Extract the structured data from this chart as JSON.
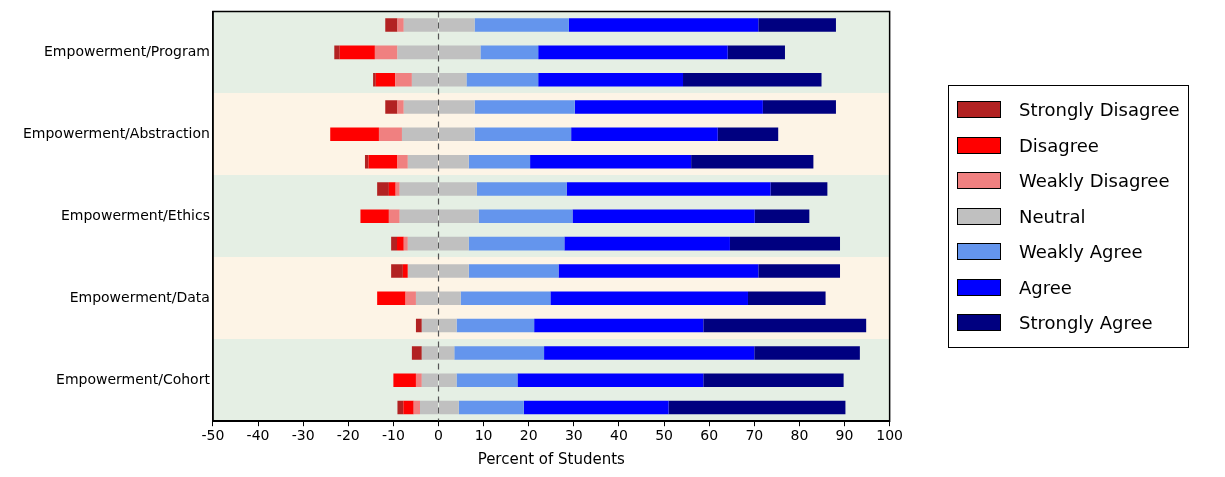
{
  "chart_data": {
    "type": "bar",
    "orientation": "horizontal",
    "stacked": true,
    "xlabel": "Percent of Students",
    "categories": [
      null,
      "Empowerment/Program",
      null,
      null,
      "Empowerment/Abstraction",
      null,
      null,
      "Empowerment/Ethics",
      null,
      null,
      "Empowerment/Data",
      null,
      null,
      "Empowerment/Cohort",
      null
    ],
    "series": [
      {
        "color": "#c0c0c0",
        "values": [
          -7.7,
          -9.1,
          -5.9,
          -7.7,
          -8.1,
          -6.8,
          -8.6,
          -8.6,
          -6.8,
          -6.8,
          -5.0,
          -3.7,
          -3.7,
          -3.7,
          -4.1
        ]
      },
      {
        "name": "Weakly Disagree",
        "color": "#f08080",
        "values": [
          -1.4,
          -5.0,
          -3.7,
          -1.4,
          -5.1,
          -2.3,
          -0.9,
          -2.4,
          -0.9,
          0,
          -2.3,
          0,
          0,
          -1.3,
          -1.4
        ]
      },
      {
        "name": "Disagree",
        "color": "#ff0000",
        "values": [
          0,
          -7.8,
          -4.3,
          0,
          -10.8,
          -6.4,
          -1.5,
          -6.3,
          -1.5,
          -1.1,
          -6.3,
          0,
          0,
          -5.0,
          -2.3
        ]
      },
      {
        "name": "Strongly Disagree",
        "color": "#b22222",
        "values": [
          -2.7,
          -1.2,
          -0.6,
          -2.7,
          0,
          -0.8,
          -2.6,
          0,
          -1.3,
          -2.6,
          0,
          -1.3,
          -2.2,
          0,
          -1.3
        ]
      },
      {
        "name": "Neutral",
        "color": "#c0c0c0",
        "values": [
          8.0,
          9.3,
          6.2,
          8.0,
          8.0,
          6.7,
          8.5,
          8.9,
          6.7,
          6.7,
          4.9,
          4.0,
          3.5,
          4.0,
          4.5
        ]
      },
      {
        "name": "Weakly Agree",
        "color": "#6495ed",
        "values": [
          20.9,
          12.8,
          15.9,
          22.2,
          21.4,
          13.6,
          19.9,
          20.8,
          21.2,
          19.9,
          19.9,
          17.2,
          19.9,
          13.5,
          14.4
        ]
      },
      {
        "name": "Agree",
        "color": "#0000ff",
        "values": [
          42.0,
          42.0,
          32.1,
          41.7,
          32.5,
          35.7,
          45.2,
          40.4,
          36.7,
          44.3,
          43.8,
          37.5,
          46.6,
          41.2,
          32.1
        ]
      },
      {
        "name": "Strongly Agree",
        "color": "#000080",
        "values": [
          17.2,
          12.7,
          30.7,
          16.2,
          13.4,
          27.1,
          12.6,
          12.1,
          24.4,
          18.1,
          17.2,
          36.1,
          23.4,
          31.1,
          39.2
        ]
      }
    ],
    "xlim": [
      -50,
      100
    ],
    "xticks": [
      -50,
      -40,
      -30,
      -20,
      -10,
      0,
      10,
      20,
      30,
      40,
      50,
      60,
      70,
      80,
      90,
      100
    ],
    "grid": false,
    "legend": "right",
    "ref_lines": [
      {
        "axis": "x",
        "value": 0,
        "color": "#555555",
        "line_style": "dashed"
      }
    ]
  }
}
